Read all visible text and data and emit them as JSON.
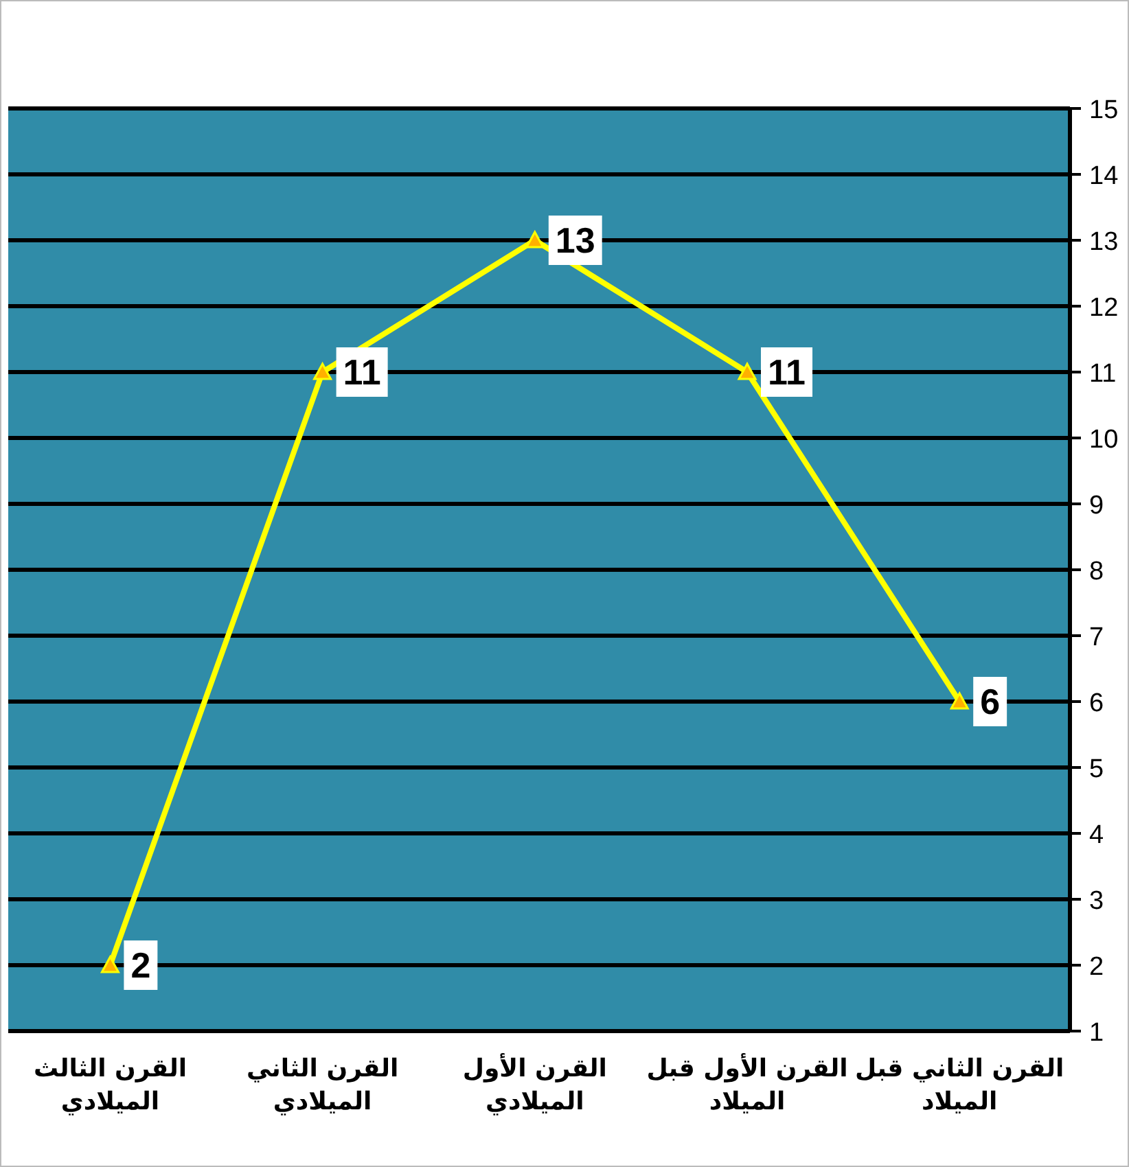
{
  "chart_data": {
    "type": "line",
    "categories": [
      "القرن الثالث الميلادي",
      "القرن الثاني الميلادي",
      "القرن الأول الميلادي",
      "القرن الأول قبل الميلاد",
      "القرن الثاني قبل الميلاد"
    ],
    "values": [
      2,
      11,
      13,
      11,
      6
    ],
    "color": "#ffff00",
    "ylim": [
      1,
      15
    ],
    "yticks": [
      1,
      2,
      3,
      4,
      5,
      6,
      7,
      8,
      9,
      10,
      11,
      12,
      13,
      14,
      15
    ],
    "grid": "y",
    "marker": "triangle",
    "line_style": "solid",
    "data_labels": true
  }
}
